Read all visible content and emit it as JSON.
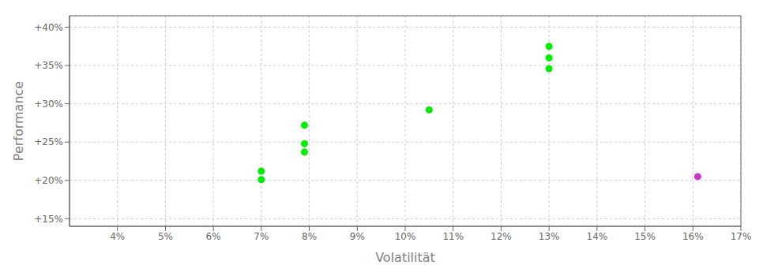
{
  "chart_data": {
    "type": "scatter",
    "xlabel": "Volatilität",
    "ylabel": "Performance",
    "xlim": [
      0.03,
      0.17
    ],
    "ylim": [
      0.14,
      0.415
    ],
    "xticks": [
      {
        "value": 0.04,
        "label": "4%"
      },
      {
        "value": 0.05,
        "label": "5%"
      },
      {
        "value": 0.06,
        "label": "6%"
      },
      {
        "value": 0.07,
        "label": "7%"
      },
      {
        "value": 0.08,
        "label": "8%"
      },
      {
        "value": 0.09,
        "label": "9%"
      },
      {
        "value": 0.1,
        "label": "10%"
      },
      {
        "value": 0.11,
        "label": "11%"
      },
      {
        "value": 0.12,
        "label": "12%"
      },
      {
        "value": 0.13,
        "label": "13%"
      },
      {
        "value": 0.14,
        "label": "14%"
      },
      {
        "value": 0.15,
        "label": "15%"
      },
      {
        "value": 0.16,
        "label": "16%"
      },
      {
        "value": 0.17,
        "label": "17%"
      }
    ],
    "yticks": [
      {
        "value": 0.15,
        "label": "+15%"
      },
      {
        "value": 0.2,
        "label": "+20%"
      },
      {
        "value": 0.25,
        "label": "+25%"
      },
      {
        "value": 0.3,
        "label": "+30%"
      },
      {
        "value": 0.35,
        "label": "+35%"
      },
      {
        "value": 0.4,
        "label": "+40%"
      }
    ],
    "grid": true,
    "series": [
      {
        "color": "#00ee00",
        "x": [
          0.07,
          0.07,
          0.079,
          0.079,
          0.079,
          0.105,
          0.13,
          0.13,
          0.13
        ],
        "values": [
          0.201,
          0.212,
          0.272,
          0.248,
          0.237,
          0.292,
          0.375,
          0.36,
          0.346
        ]
      },
      {
        "color": "#cc33cc",
        "x": [
          0.161
        ],
        "values": [
          0.205
        ]
      }
    ]
  }
}
